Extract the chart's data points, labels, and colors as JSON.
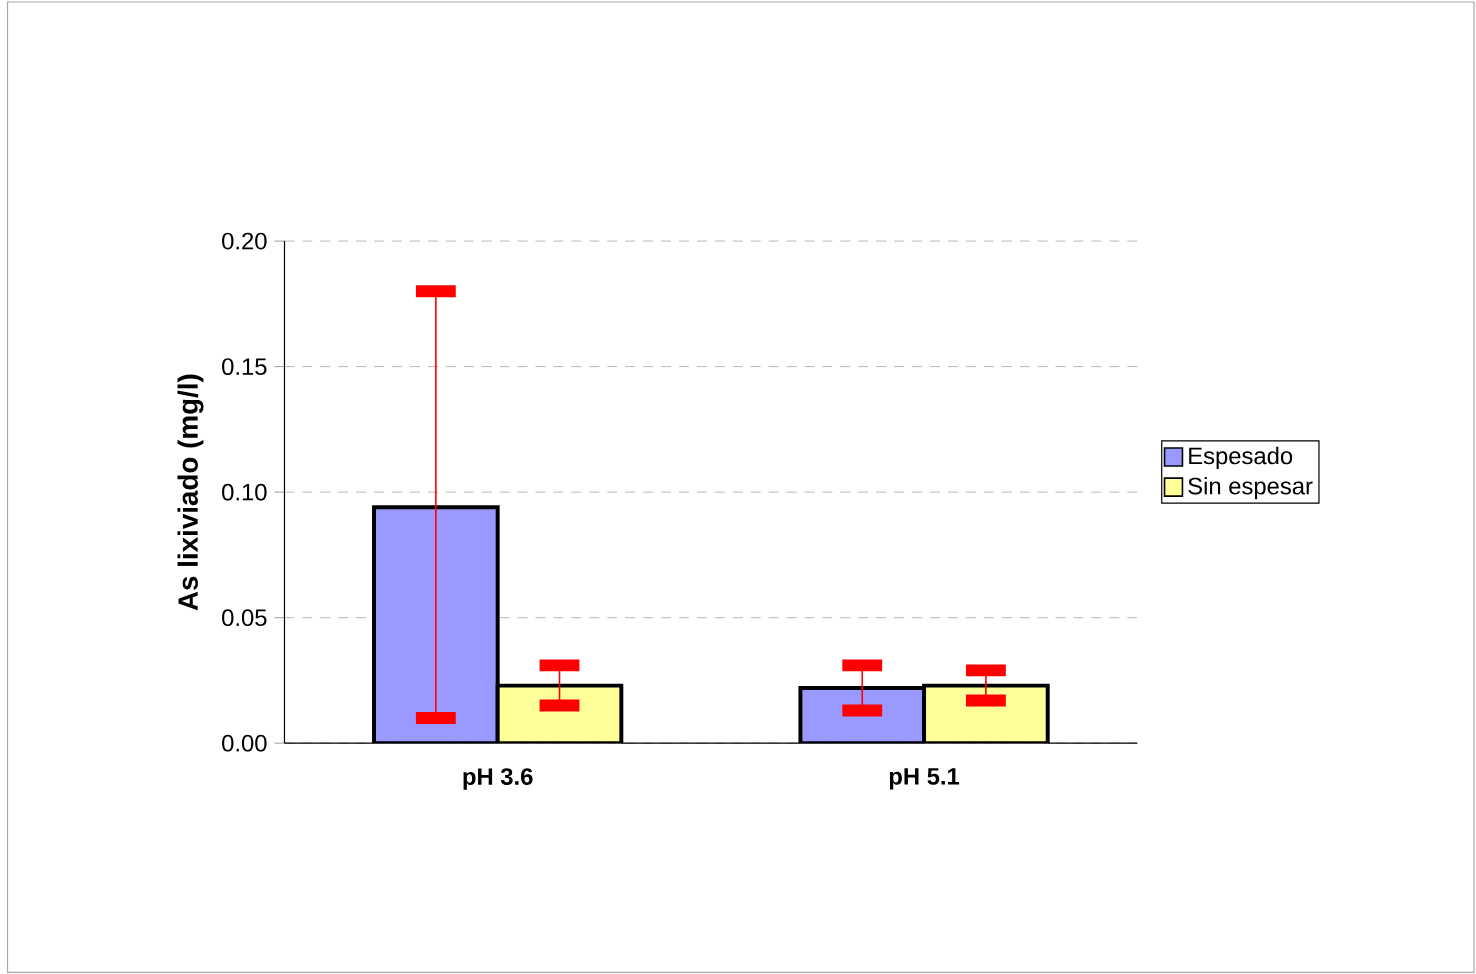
{
  "chart_data": {
    "type": "bar",
    "ylabel": "As lixiviado (mg/l)",
    "categories": [
      "pH 3.6",
      "pH 5.1"
    ],
    "series": [
      {
        "name": "Espesado",
        "color": "#9999ff",
        "values": [
          0.094,
          0.022
        ],
        "errors": [
          [
            0.01,
            0.18
          ],
          [
            0.013,
            0.031
          ]
        ]
      },
      {
        "name": "Sin espesar",
        "color": "#ffff99",
        "values": [
          0.023,
          0.023
        ],
        "errors": [
          [
            0.015,
            0.031
          ],
          [
            0.017,
            0.029
          ]
        ]
      }
    ],
    "ylim": [
      0,
      0.2
    ],
    "yticks": [
      {
        "value": 0,
        "label": "0.00"
      },
      {
        "value": 0.05,
        "label": "0.05"
      },
      {
        "value": 0.1,
        "label": "0.10"
      },
      {
        "value": 0.15,
        "label": "0.15"
      },
      {
        "value": 0.2,
        "label": "0.20"
      }
    ],
    "grid": "y",
    "legend": "right"
  }
}
